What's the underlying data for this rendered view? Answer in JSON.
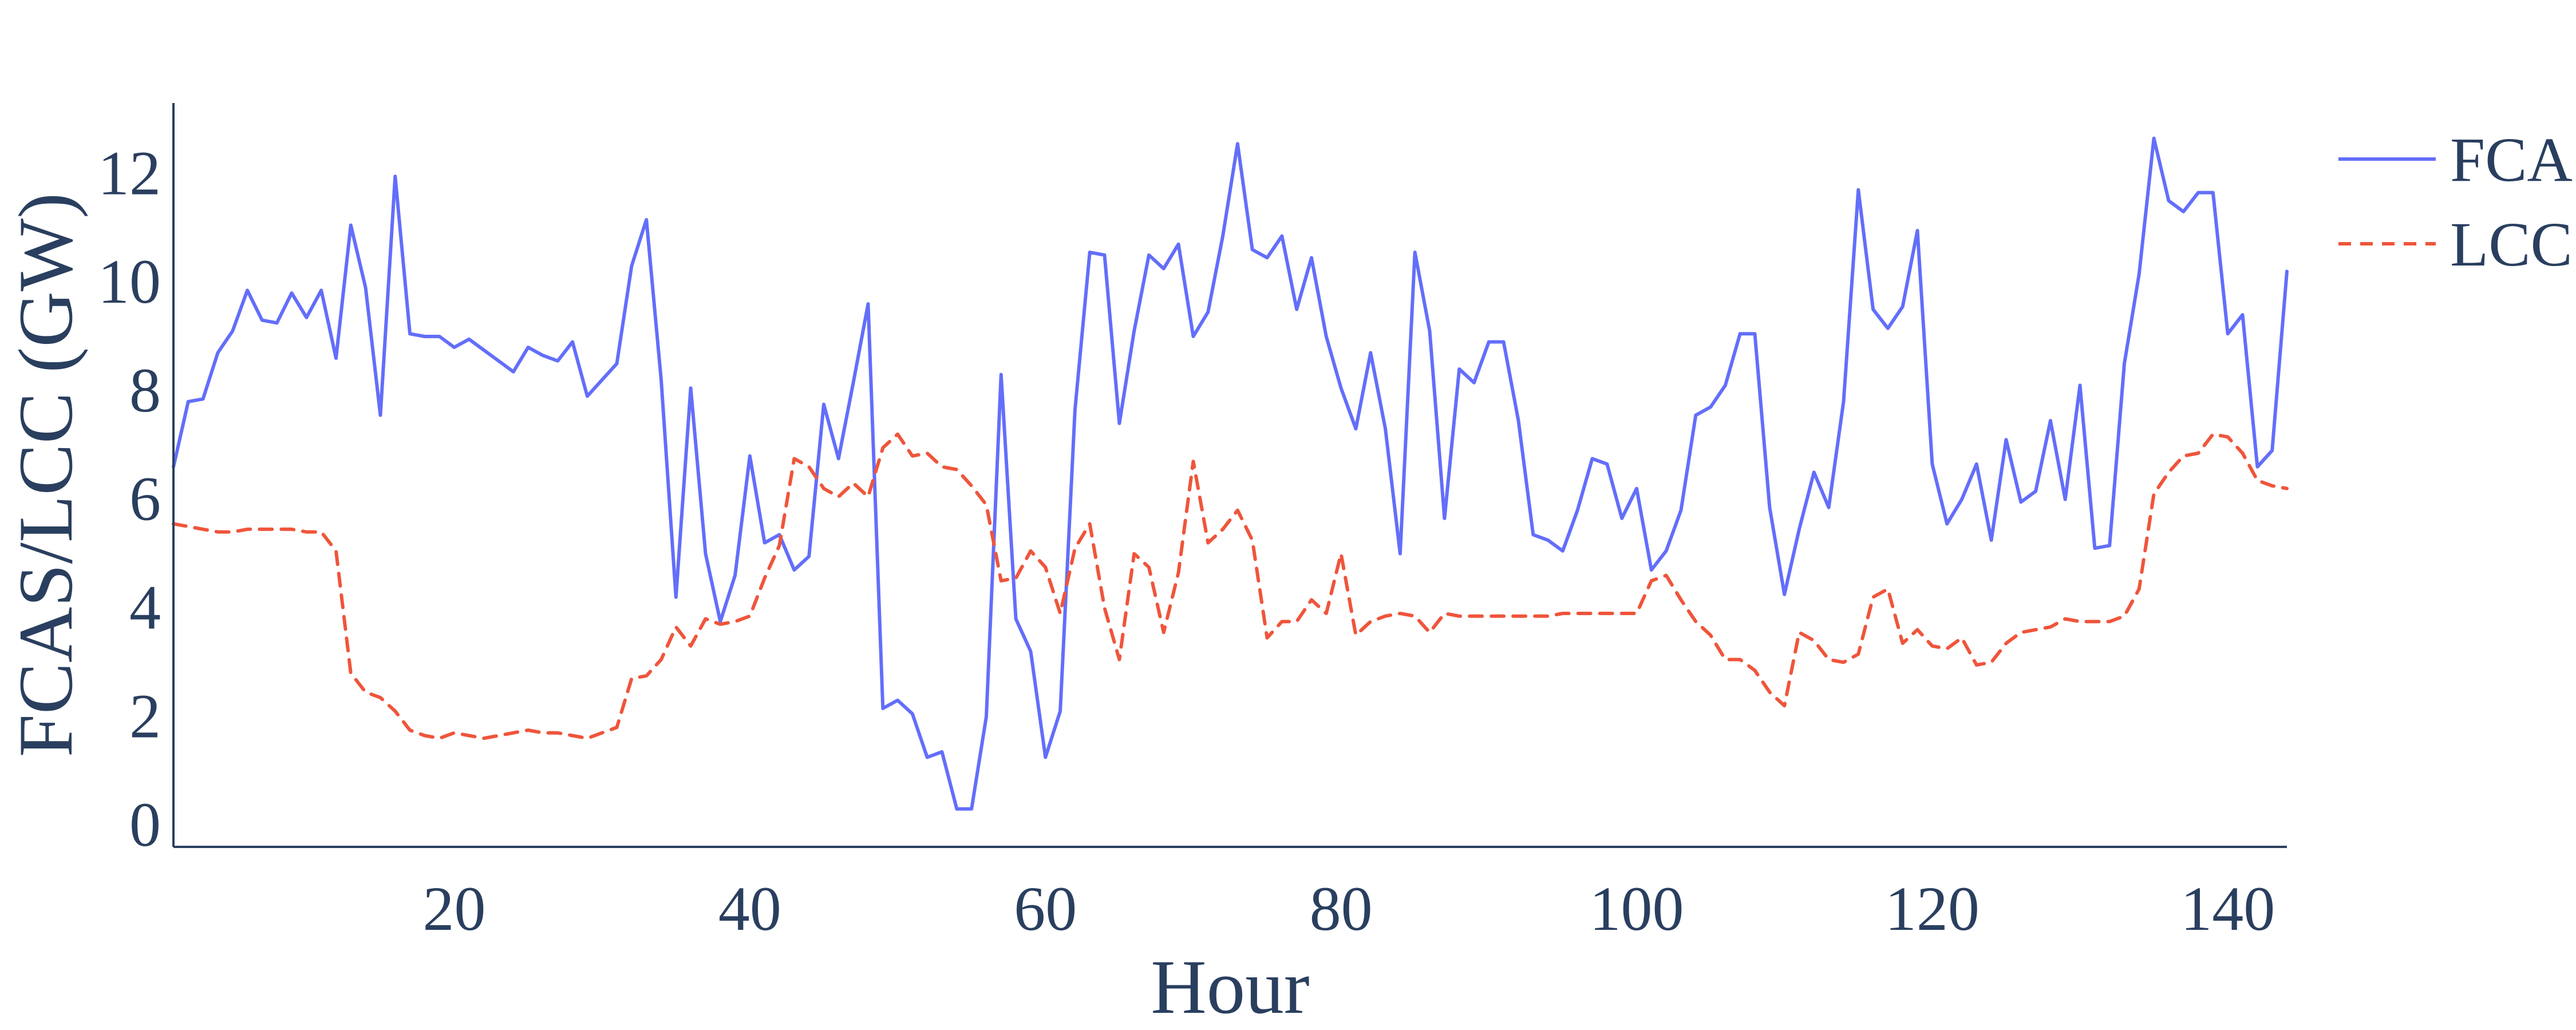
{
  "chart_data": {
    "type": "line",
    "xlabel": "Hour",
    "ylabel": "FCAS/LCC (GW)",
    "xlim": [
      1,
      144
    ],
    "ylim": [
      -0.4,
      13.3
    ],
    "x_ticks": [
      20,
      40,
      60,
      80,
      100,
      120,
      140
    ],
    "y_ticks": [
      0,
      2,
      4,
      6,
      8,
      10,
      12
    ],
    "grid": false,
    "legend_position": "top-right",
    "x": [
      1,
      2,
      3,
      4,
      5,
      6,
      7,
      8,
      9,
      10,
      11,
      12,
      13,
      14,
      15,
      16,
      17,
      18,
      19,
      20,
      21,
      22,
      23,
      24,
      25,
      26,
      27,
      28,
      29,
      30,
      31,
      32,
      33,
      34,
      35,
      36,
      37,
      38,
      39,
      40,
      41,
      42,
      43,
      44,
      45,
      46,
      47,
      48,
      49,
      50,
      51,
      52,
      53,
      54,
      55,
      56,
      57,
      58,
      59,
      60,
      61,
      62,
      63,
      64,
      65,
      66,
      67,
      68,
      69,
      70,
      71,
      72,
      73,
      74,
      75,
      76,
      77,
      78,
      79,
      80,
      81,
      82,
      83,
      84,
      85,
      86,
      87,
      88,
      89,
      90,
      91,
      92,
      93,
      94,
      95,
      96,
      97,
      98,
      99,
      100,
      101,
      102,
      103,
      104,
      105,
      106,
      107,
      108,
      109,
      110,
      111,
      112,
      113,
      114,
      115,
      116,
      117,
      118,
      119,
      120,
      121,
      122,
      123,
      124,
      125,
      126,
      127,
      128,
      129,
      130,
      131,
      132,
      133,
      134,
      135,
      136,
      137,
      138,
      139,
      140,
      141,
      142,
      143,
      144
    ],
    "series": [
      {
        "name": "FCAS",
        "color": "#636efa",
        "dash": "solid",
        "values": [
          6.6,
          7.8,
          7.85,
          8.7,
          9.1,
          9.85,
          9.3,
          9.25,
          9.8,
          9.35,
          9.85,
          8.6,
          11.05,
          9.9,
          7.55,
          11.95,
          9.05,
          9.0,
          9.0,
          8.8,
          8.95,
          8.75,
          8.55,
          8.35,
          8.8,
          8.65,
          8.55,
          8.9,
          7.9,
          8.2,
          8.5,
          10.3,
          11.15,
          8.2,
          4.2,
          8.05,
          5.0,
          3.75,
          4.6,
          6.8,
          5.2,
          5.35,
          4.7,
          4.95,
          7.75,
          6.75,
          8.15,
          9.6,
          2.15,
          2.3,
          2.05,
          1.25,
          1.35,
          0.3,
          0.3,
          2.0,
          8.3,
          3.8,
          3.2,
          1.25,
          2.1,
          7.65,
          10.55,
          10.5,
          7.4,
          9.1,
          10.5,
          10.25,
          10.7,
          9.0,
          9.45,
          10.85,
          12.55,
          10.6,
          10.45,
          10.85,
          9.5,
          10.45,
          9.0,
          8.05,
          7.3,
          8.7,
          7.3,
          5.0,
          10.55,
          9.1,
          5.65,
          8.4,
          8.15,
          8.9,
          8.9,
          7.45,
          5.35,
          5.25,
          5.05,
          5.8,
          6.75,
          6.65,
          5.65,
          6.2,
          4.7,
          5.05,
          5.8,
          7.55,
          7.7,
          8.1,
          9.05,
          9.05,
          5.85,
          4.25,
          5.45,
          6.5,
          5.85,
          7.8,
          11.7,
          9.5,
          9.15,
          9.55,
          10.95,
          6.65,
          5.55,
          6.0,
          6.65,
          5.25,
          7.1,
          5.95,
          6.15,
          7.45,
          6.0,
          8.1,
          5.1,
          5.15,
          8.5,
          10.15,
          12.65,
          11.5,
          11.3,
          11.65,
          11.65,
          9.05,
          9.4,
          6.6,
          6.9,
          10.2
        ]
      },
      {
        "name": "LCC",
        "color": "#ef553b",
        "dash": "dashed",
        "values": [
          5.55,
          5.5,
          5.45,
          5.4,
          5.4,
          5.45,
          5.45,
          5.45,
          5.45,
          5.4,
          5.4,
          5.05,
          2.8,
          2.45,
          2.35,
          2.1,
          1.75,
          1.65,
          1.6,
          1.7,
          1.65,
          1.6,
          1.65,
          1.7,
          1.75,
          1.7,
          1.7,
          1.65,
          1.6,
          1.7,
          1.8,
          2.7,
          2.75,
          3.05,
          3.65,
          3.3,
          3.8,
          3.7,
          3.75,
          3.85,
          4.55,
          5.15,
          6.75,
          6.6,
          6.2,
          6.05,
          6.3,
          6.05,
          6.95,
          7.2,
          6.8,
          6.85,
          6.6,
          6.55,
          6.25,
          5.9,
          4.5,
          4.55,
          5.05,
          4.75,
          3.9,
          5.1,
          5.55,
          4.0,
          3.05,
          5.0,
          4.75,
          3.55,
          4.65,
          6.7,
          5.2,
          5.45,
          5.8,
          5.25,
          3.45,
          3.75,
          3.75,
          4.15,
          3.9,
          5.0,
          3.5,
          3.75,
          3.85,
          3.9,
          3.85,
          3.55,
          3.9,
          3.85,
          3.85,
          3.85,
          3.85,
          3.85,
          3.85,
          3.85,
          3.9,
          3.9,
          3.9,
          3.9,
          3.9,
          3.9,
          4.5,
          4.6,
          4.15,
          3.75,
          3.5,
          3.05,
          3.05,
          2.85,
          2.45,
          2.2,
          3.55,
          3.4,
          3.05,
          3.0,
          3.15,
          4.2,
          4.35,
          3.35,
          3.6,
          3.3,
          3.25,
          3.45,
          2.95,
          3.0,
          3.35,
          3.55,
          3.6,
          3.65,
          3.8,
          3.75,
          3.75,
          3.75,
          3.85,
          4.35,
          6.1,
          6.5,
          6.8,
          6.85,
          7.2,
          7.15,
          6.85,
          6.35,
          6.25,
          6.2
        ]
      }
    ]
  }
}
